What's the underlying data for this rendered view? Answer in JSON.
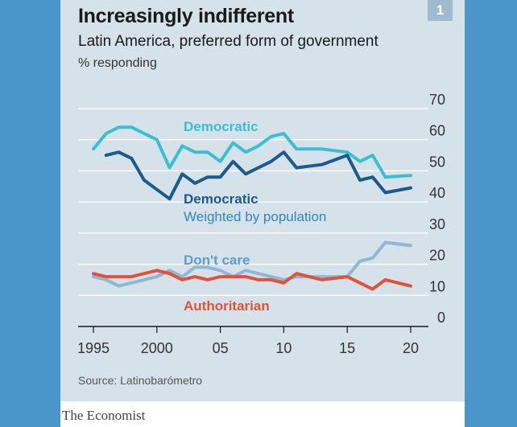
{
  "header": {
    "title": "Increasingly indifferent",
    "subtitle": "Latin America, preferred form of government",
    "unit": "% responding",
    "page_number": "1"
  },
  "footer": {
    "source": "Source: Latinobarómetro",
    "brand": "The Economist"
  },
  "colors": {
    "background": "#4a95c9",
    "panel": "#d6e2ea",
    "democratic": "#3bbfd0",
    "democratic_weighted": "#1b5a8a",
    "dont_care": "#8fb8d4",
    "authoritarian": "#e0533a"
  },
  "chart_data": {
    "type": "line",
    "title": "Increasingly indifferent",
    "subtitle": "Latin America, preferred form of government",
    "ylabel": "% responding",
    "xlabel": "",
    "xlim": [
      1995,
      2020
    ],
    "ylim": [
      0,
      70
    ],
    "x_ticks": [
      "1995",
      "2000",
      "05",
      "10",
      "15",
      "20"
    ],
    "x_tick_values": [
      1995,
      2000,
      2005,
      2010,
      2015,
      2020
    ],
    "y_ticks": [
      "0",
      "10",
      "20",
      "30",
      "40",
      "50",
      "60",
      "70"
    ],
    "y_tick_values": [
      0,
      10,
      20,
      30,
      40,
      50,
      60,
      70
    ],
    "grid": true,
    "series": [
      {
        "name": "Democratic",
        "label": "Democratic",
        "color": "#3bbfd0",
        "x": [
          1995,
          1996,
          1997,
          1998,
          1999,
          2000,
          2001,
          2002,
          2003,
          2004,
          2005,
          2006,
          2007,
          2008,
          2009,
          2010,
          2011,
          2013,
          2015,
          2016,
          2017,
          2018,
          2020
        ],
        "y": [
          57,
          62,
          64,
          64,
          62,
          60,
          51,
          58,
          56,
          56,
          53,
          59,
          56,
          58,
          61,
          62,
          57,
          57,
          56,
          53,
          55,
          48,
          48.5
        ]
      },
      {
        "name": "Democratic Weighted by population",
        "label": "Democratic",
        "sublabel": "Weighted by population",
        "color": "#1b5a8a",
        "x": [
          1996,
          1997,
          1998,
          1999,
          2000,
          2001,
          2002,
          2003,
          2004,
          2005,
          2006,
          2007,
          2008,
          2009,
          2010,
          2011,
          2013,
          2015,
          2016,
          2017,
          2018,
          2020
        ],
        "y": [
          55,
          56,
          54,
          47,
          44,
          41,
          49,
          46,
          48,
          48,
          53,
          49,
          51,
          53,
          56,
          51,
          52,
          55,
          47,
          48,
          43,
          44.5
        ]
      },
      {
        "name": "Don't care",
        "label": "Don't care",
        "color": "#8fb8d4",
        "x": [
          1995,
          1996,
          1997,
          1998,
          1999,
          2000,
          2001,
          2002,
          2003,
          2004,
          2005,
          2006,
          2007,
          2008,
          2009,
          2010,
          2011,
          2013,
          2015,
          2016,
          2017,
          2018,
          2020
        ],
        "y": [
          16,
          15,
          13,
          14,
          15,
          16,
          18,
          16,
          19,
          19,
          18,
          16,
          18,
          17,
          16,
          15,
          16,
          16,
          16,
          21,
          22,
          27,
          26
        ]
      },
      {
        "name": "Authoritarian",
        "label": "Authoritarian",
        "color": "#e0533a",
        "x": [
          1995,
          1996,
          1997,
          1998,
          1999,
          2000,
          2001,
          2002,
          2003,
          2004,
          2005,
          2006,
          2007,
          2008,
          2009,
          2010,
          2011,
          2013,
          2015,
          2016,
          2017,
          2018,
          2020
        ],
        "y": [
          17,
          16,
          16,
          16,
          17,
          18,
          17,
          15,
          16,
          15,
          16,
          16,
          16,
          15,
          15,
          14,
          17,
          15,
          16,
          14,
          12,
          15,
          13
        ]
      }
    ]
  }
}
